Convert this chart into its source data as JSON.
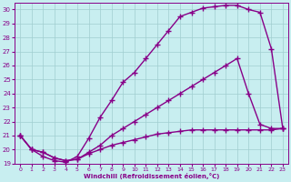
{
  "xlabel": "Windchill (Refroidissement éolien,°C)",
  "xlim": [
    -0.5,
    23.5
  ],
  "ylim": [
    19,
    30.5
  ],
  "yticks": [
    19,
    20,
    21,
    22,
    23,
    24,
    25,
    26,
    27,
    28,
    29,
    30
  ],
  "xticks": [
    0,
    1,
    2,
    3,
    4,
    5,
    6,
    7,
    8,
    9,
    10,
    11,
    12,
    13,
    14,
    15,
    16,
    17,
    18,
    19,
    20,
    21,
    22,
    23
  ],
  "bg_color": "#c8eef0",
  "grid_color": "#a0cdd0",
  "line_color": "#880088",
  "line_width": 1.0,
  "marker": "+",
  "marker_size": 4,
  "curves": [
    {
      "x": [
        0,
        1,
        2,
        3,
        4,
        5,
        6,
        7,
        8,
        9,
        10,
        11,
        12,
        13,
        14,
        15,
        16,
        17,
        18,
        19,
        20,
        21,
        22,
        23
      ],
      "y": [
        21.0,
        20.0,
        19.5,
        19.2,
        19.1,
        19.5,
        20.8,
        22.3,
        23.5,
        24.8,
        25.5,
        26.5,
        27.5,
        28.5,
        29.5,
        29.8,
        30.1,
        30.2,
        30.3,
        30.3,
        30.0,
        29.8,
        27.2,
        21.5
      ]
    },
    {
      "x": [
        0,
        1,
        2,
        3,
        4,
        5,
        6,
        7,
        8,
        9,
        10,
        11,
        12,
        13,
        14,
        15,
        16,
        17,
        18,
        19,
        20,
        21,
        22,
        23
      ],
      "y": [
        21.0,
        20.0,
        19.8,
        19.4,
        19.2,
        19.3,
        19.8,
        20.3,
        21.0,
        21.5,
        22.0,
        22.5,
        23.0,
        23.5,
        24.0,
        24.5,
        25.0,
        25.5,
        26.0,
        26.5,
        24.0,
        21.8,
        21.5,
        21.5
      ]
    },
    {
      "x": [
        0,
        1,
        2,
        3,
        4,
        5,
        6,
        7,
        8,
        9,
        10,
        11,
        12,
        13,
        14,
        15,
        16,
        17,
        18,
        19,
        20,
        21,
        22,
        23
      ],
      "y": [
        21.0,
        20.0,
        19.8,
        19.4,
        19.2,
        19.3,
        19.7,
        20.0,
        20.3,
        20.5,
        20.7,
        20.9,
        21.1,
        21.2,
        21.3,
        21.4,
        21.4,
        21.4,
        21.4,
        21.4,
        21.4,
        21.4,
        21.4,
        21.5
      ]
    }
  ]
}
